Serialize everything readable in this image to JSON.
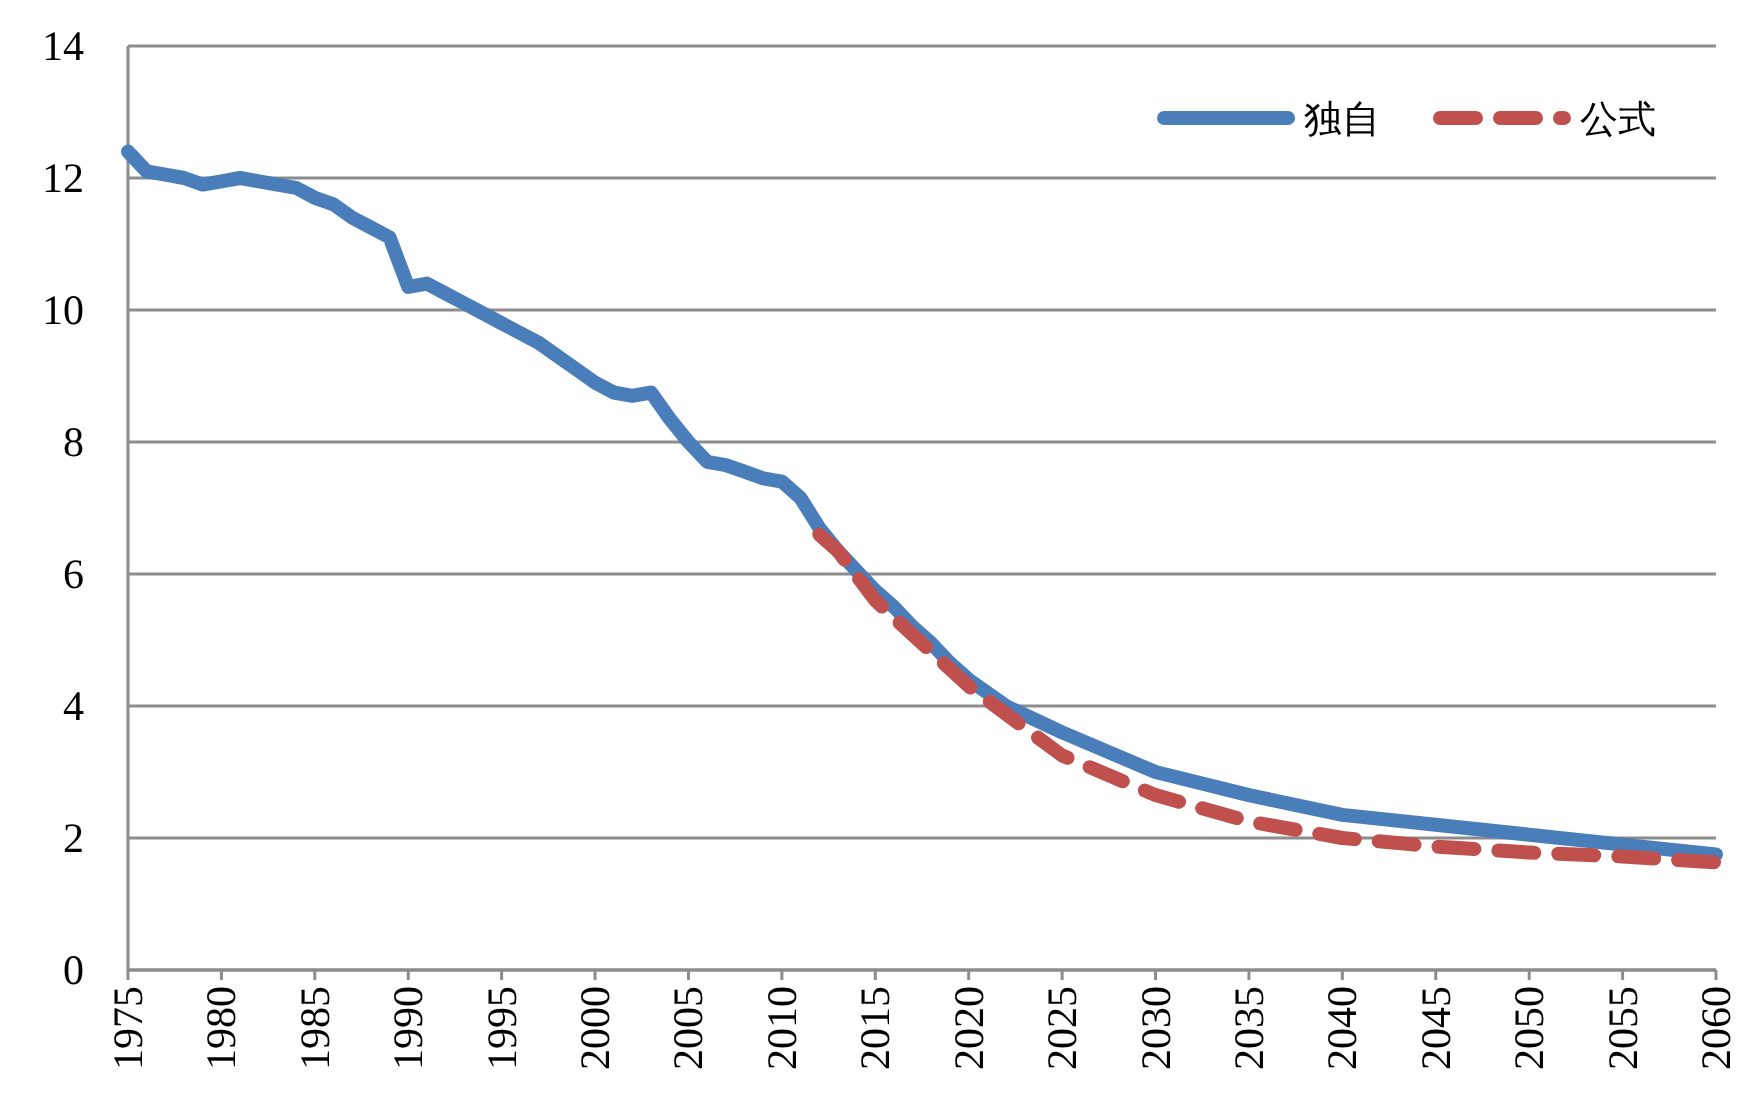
{
  "chart_data": {
    "type": "line",
    "xlim": [
      1975,
      2060
    ],
    "xticks": [
      1975,
      1980,
      1985,
      1990,
      1995,
      2000,
      2005,
      2010,
      2015,
      2020,
      2025,
      2030,
      2035,
      2040,
      2045,
      2050,
      2055,
      2060
    ],
    "ylim": [
      0,
      14
    ],
    "yticks": [
      0,
      2,
      4,
      6,
      8,
      10,
      12,
      14
    ],
    "grid": "y",
    "legend": "top right",
    "marker": "none",
    "series": [
      {
        "name": "独自",
        "color": "#4a7ebb",
        "line_style": "solid",
        "x": [
          1975,
          1976,
          1977,
          1978,
          1979,
          1980,
          1981,
          1982,
          1983,
          1984,
          1985,
          1986,
          1987,
          1988,
          1989,
          1990,
          1991,
          1992,
          1993,
          1994,
          1995,
          1996,
          1997,
          1998,
          1999,
          2000,
          2001,
          2002,
          2003,
          2004,
          2005,
          2006,
          2007,
          2008,
          2009,
          2010,
          2011,
          2012,
          2013,
          2014,
          2015,
          2016,
          2017,
          2018,
          2019,
          2020,
          2022,
          2025,
          2030,
          2035,
          2040,
          2045,
          2050,
          2055,
          2060
        ],
        "values": [
          12.4,
          12.1,
          12.05,
          12.0,
          11.9,
          11.95,
          12.0,
          11.95,
          11.9,
          11.85,
          11.7,
          11.6,
          11.4,
          11.25,
          11.1,
          10.35,
          10.4,
          10.25,
          10.1,
          9.95,
          9.8,
          9.65,
          9.5,
          9.3,
          9.1,
          8.9,
          8.75,
          8.7,
          8.75,
          8.35,
          8.0,
          7.7,
          7.65,
          7.55,
          7.45,
          7.4,
          7.15,
          6.7,
          6.35,
          6.05,
          5.75,
          5.5,
          5.2,
          4.95,
          4.65,
          4.4,
          4.0,
          3.6,
          3.0,
          2.65,
          2.35,
          2.2,
          2.05,
          1.9,
          1.75
        ]
      },
      {
        "name": "公式",
        "color": "#c0504d",
        "line_style": "dashed",
        "x": [
          2012,
          2013,
          2015,
          2020,
          2025,
          2030,
          2035,
          2040,
          2045,
          2050,
          2055,
          2060
        ],
        "values": [
          6.6,
          6.35,
          5.6,
          4.3,
          3.25,
          2.65,
          2.25,
          2.0,
          1.87,
          1.78,
          1.72,
          1.63
        ]
      }
    ]
  }
}
